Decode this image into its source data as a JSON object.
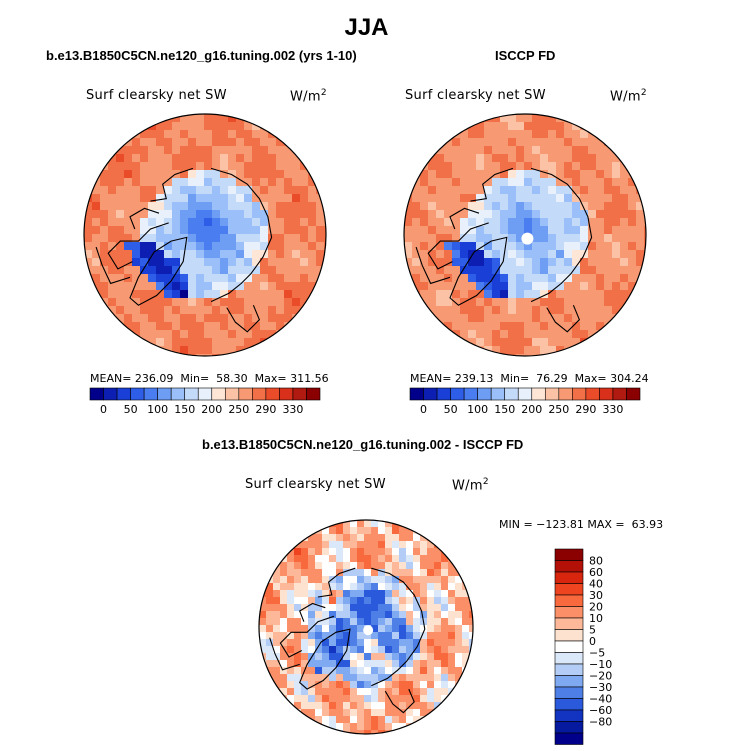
{
  "figure": {
    "title": "JJA"
  },
  "chart_data": [
    {
      "type": "heatmap",
      "projection": "north-polar-stereographic",
      "panel_title": "b.e13.B1850C5CN.ne120_g16.tuning.002 (yrs 1-10)",
      "variable": "Surf clearsky net SW",
      "units_base": "W/m",
      "units_exp": "2",
      "stats": {
        "mean_label": "MEAN=",
        "mean": "236.09",
        "min_label": "Min=",
        "min": "58.30",
        "max_label": "Max=",
        "max": "311.56"
      },
      "colorbar": {
        "orientation": "horizontal",
        "levels": [
          "0",
          "50",
          "100",
          "150",
          "200",
          "250",
          "290",
          "330"
        ],
        "colors": [
          "#00008b",
          "#0c1fb2",
          "#1a3fd6",
          "#2e5de8",
          "#4a7df0",
          "#6e9ef4",
          "#9bbff8",
          "#c4daf9",
          "#e8f1fb",
          "#fde6d6",
          "#fcc2a6",
          "#f79972",
          "#f27048",
          "#ea4c29",
          "#d8301a",
          "#b11a10",
          "#8b0000"
        ]
      },
      "field": {
        "center_value": 90,
        "greenland_value": 65,
        "ocean_high": 300,
        "land_value": 285
      }
    },
    {
      "type": "heatmap",
      "projection": "north-polar-stereographic",
      "panel_title": "ISCCP FD",
      "variable": "Surf clearsky net SW",
      "units_base": "W/m",
      "units_exp": "2",
      "stats": {
        "mean_label": "MEAN=",
        "mean": "239.13",
        "min_label": "Min=",
        "min": "76.29",
        "max_label": "Max=",
        "max": "304.24"
      },
      "colorbar": {
        "orientation": "horizontal",
        "levels": [
          "0",
          "50",
          "100",
          "150",
          "200",
          "250",
          "290",
          "330"
        ],
        "colors": [
          "#00008b",
          "#0c1fb2",
          "#1a3fd6",
          "#2e5de8",
          "#4a7df0",
          "#6e9ef4",
          "#9bbff8",
          "#c4daf9",
          "#e8f1fb",
          "#fde6d6",
          "#fcc2a6",
          "#f79972",
          "#f27048",
          "#ea4c29",
          "#d8301a",
          "#b11a10",
          "#8b0000"
        ]
      },
      "field": {
        "center_value": 110,
        "greenland_value": 75,
        "ocean_high": 295,
        "land_value": 280,
        "missing_pole": true
      }
    },
    {
      "type": "heatmap",
      "projection": "north-polar-stereographic",
      "panel_title": "b.e13.B1850C5CN.ne120_g16.tuning.002 - ISCCP FD",
      "variable": "Surf clearsky net SW",
      "units_base": "W/m",
      "units_exp": "2",
      "stats_line": "MIN = −123.81 MAX =  63.93",
      "colorbar": {
        "orientation": "vertical",
        "levels": [
          "80",
          "60",
          "40",
          "30",
          "20",
          "10",
          "5",
          "0",
          "−5",
          "−10",
          "−20",
          "−30",
          "−40",
          "−60",
          "−80"
        ],
        "colors": [
          "#8b0000",
          "#b31008",
          "#d7250e",
          "#ee4420",
          "#f86a3e",
          "#fb8f68",
          "#fcb898",
          "#fde2cf",
          "#ffffff",
          "#dbe8fa",
          "#b3cdf6",
          "#7fa9f0",
          "#4d7fe6",
          "#2a59dc",
          "#1234c0",
          "#061aa0",
          "#00008b"
        ]
      },
      "field": {
        "center_value": -35,
        "greenland_value": -25,
        "ocean_value": 8,
        "land_value": 4,
        "missing_pole": true
      }
    }
  ]
}
